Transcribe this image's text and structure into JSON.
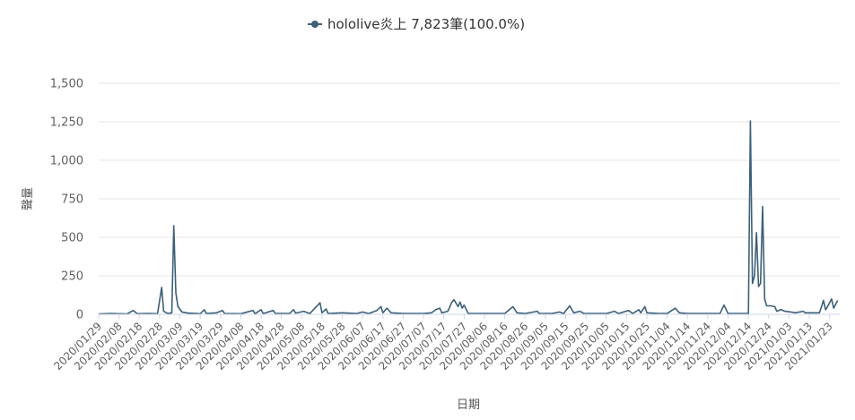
{
  "chart_data": {
    "type": "line",
    "legend": {
      "label": "hololive炎上 7,823筆(100.0%)",
      "placement": "top-center"
    },
    "xlabel": "日期",
    "ylabel": "聲量",
    "ylim": [
      0,
      1500
    ],
    "yticks": [
      0,
      250,
      500,
      750,
      1000,
      1250,
      1500
    ],
    "ytick_labels": [
      "0",
      "250",
      "500",
      "750",
      "1,000",
      "1,250",
      "1,500"
    ],
    "xtick_labels": [
      "2020/01/29",
      "2020/02/08",
      "2020/02/18",
      "2020/02/28",
      "2020/03/09",
      "2020/03/19",
      "2020/03/29",
      "2020/04/08",
      "2020/04/18",
      "2020/04/28",
      "2020/05/08",
      "2020/05/18",
      "2020/05/28",
      "2020/06/07",
      "2020/06/17",
      "2020/06/27",
      "2020/07/07",
      "2020/07/17",
      "2020/07/27",
      "2020/08/06",
      "2020/08/16",
      "2020/08/26",
      "2020/09/05",
      "2020/09/15",
      "2020/09/25",
      "2020/10/05",
      "2020/10/15",
      "2020/10/25",
      "2020/11/04",
      "2020/11/14",
      "2020/11/24",
      "2020/12/04",
      "2020/12/14",
      "2020/12/24",
      "2021/01/03",
      "2021/01/13",
      "2021/01/23"
    ],
    "grid": true,
    "series": [
      {
        "name": "hololive炎上",
        "color": "#3d6078",
        "points": [
          [
            "2020/01/29",
            3
          ],
          [
            "2020/02/04",
            5
          ],
          [
            "2020/02/08",
            4
          ],
          [
            "2020/02/12",
            3
          ],
          [
            "2020/02/15",
            25
          ],
          [
            "2020/02/17",
            4
          ],
          [
            "2020/02/22",
            5
          ],
          [
            "2020/02/27",
            4
          ],
          [
            "2020/02/29",
            175
          ],
          [
            "2020/03/01",
            20
          ],
          [
            "2020/03/03",
            5
          ],
          [
            "2020/03/05",
            10
          ],
          [
            "2020/03/06",
            575
          ],
          [
            "2020/03/07",
            140
          ],
          [
            "2020/03/08",
            50
          ],
          [
            "2020/03/10",
            15
          ],
          [
            "2020/03/13",
            8
          ],
          [
            "2020/03/19",
            4
          ],
          [
            "2020/03/21",
            30
          ],
          [
            "2020/03/22",
            6
          ],
          [
            "2020/03/27",
            10
          ],
          [
            "2020/03/30",
            25
          ],
          [
            "2020/03/31",
            5
          ],
          [
            "2020/04/08",
            4
          ],
          [
            "2020/04/14",
            25
          ],
          [
            "2020/04/15",
            4
          ],
          [
            "2020/04/18",
            30
          ],
          [
            "2020/04/19",
            5
          ],
          [
            "2020/04/24",
            25
          ],
          [
            "2020/04/25",
            5
          ],
          [
            "2020/05/02",
            5
          ],
          [
            "2020/05/04",
            30
          ],
          [
            "2020/05/05",
            8
          ],
          [
            "2020/05/09",
            20
          ],
          [
            "2020/05/12",
            5
          ],
          [
            "2020/05/17",
            75
          ],
          [
            "2020/05/18",
            10
          ],
          [
            "2020/05/20",
            35
          ],
          [
            "2020/05/21",
            5
          ],
          [
            "2020/05/28",
            10
          ],
          [
            "2020/06/04",
            5
          ],
          [
            "2020/06/07",
            15
          ],
          [
            "2020/06/10",
            5
          ],
          [
            "2020/06/14",
            25
          ],
          [
            "2020/06/16",
            50
          ],
          [
            "2020/06/17",
            10
          ],
          [
            "2020/06/19",
            40
          ],
          [
            "2020/06/21",
            10
          ],
          [
            "2020/06/27",
            5
          ],
          [
            "2020/07/03",
            5
          ],
          [
            "2020/07/07",
            5
          ],
          [
            "2020/07/11",
            10
          ],
          [
            "2020/07/13",
            30
          ],
          [
            "2020/07/15",
            40
          ],
          [
            "2020/07/16",
            10
          ],
          [
            "2020/07/19",
            20
          ],
          [
            "2020/07/21",
            80
          ],
          [
            "2020/07/22",
            95
          ],
          [
            "2020/07/24",
            50
          ],
          [
            "2020/07/25",
            80
          ],
          [
            "2020/07/26",
            40
          ],
          [
            "2020/07/27",
            60
          ],
          [
            "2020/07/29",
            5
          ],
          [
            "2020/08/06",
            5
          ],
          [
            "2020/08/16",
            5
          ],
          [
            "2020/08/20",
            50
          ],
          [
            "2020/08/22",
            10
          ],
          [
            "2020/08/26",
            5
          ],
          [
            "2020/09/01",
            20
          ],
          [
            "2020/09/02",
            5
          ],
          [
            "2020/09/08",
            5
          ],
          [
            "2020/09/12",
            15
          ],
          [
            "2020/09/14",
            5
          ],
          [
            "2020/09/17",
            55
          ],
          [
            "2020/09/19",
            10
          ],
          [
            "2020/09/22",
            20
          ],
          [
            "2020/09/24",
            5
          ],
          [
            "2020/10/05",
            5
          ],
          [
            "2020/10/09",
            20
          ],
          [
            "2020/10/11",
            5
          ],
          [
            "2020/10/16",
            25
          ],
          [
            "2020/10/18",
            5
          ],
          [
            "2020/10/21",
            30
          ],
          [
            "2020/10/22",
            10
          ],
          [
            "2020/10/24",
            50
          ],
          [
            "2020/10/25",
            10
          ],
          [
            "2020/10/31",
            5
          ],
          [
            "2020/11/04",
            5
          ],
          [
            "2020/11/08",
            40
          ],
          [
            "2020/11/10",
            10
          ],
          [
            "2020/11/14",
            5
          ],
          [
            "2020/11/24",
            5
          ],
          [
            "2020/11/30",
            5
          ],
          [
            "2020/12/02",
            60
          ],
          [
            "2020/12/04",
            5
          ],
          [
            "2020/12/14",
            5
          ],
          [
            "2020/12/15",
            1255
          ],
          [
            "2020/12/16",
            200
          ],
          [
            "2020/12/17",
            250
          ],
          [
            "2020/12/18",
            530
          ],
          [
            "2020/12/19",
            180
          ],
          [
            "2020/12/20",
            200
          ],
          [
            "2020/12/21",
            700
          ],
          [
            "2020/12/22",
            100
          ],
          [
            "2020/12/23",
            55
          ],
          [
            "2020/12/25",
            55
          ],
          [
            "2020/12/27",
            50
          ],
          [
            "2020/12/28",
            20
          ],
          [
            "2020/12/30",
            30
          ],
          [
            "2021/01/01",
            20
          ],
          [
            "2021/01/04",
            15
          ],
          [
            "2021/01/06",
            10
          ],
          [
            "2021/01/10",
            20
          ],
          [
            "2021/01/11",
            10
          ],
          [
            "2021/01/15",
            10
          ],
          [
            "2021/01/18",
            10
          ],
          [
            "2021/01/20",
            90
          ],
          [
            "2021/01/21",
            30
          ],
          [
            "2021/01/22",
            50
          ],
          [
            "2021/01/24",
            100
          ],
          [
            "2021/01/25",
            40
          ],
          [
            "2021/01/27",
            90
          ]
        ]
      }
    ]
  }
}
